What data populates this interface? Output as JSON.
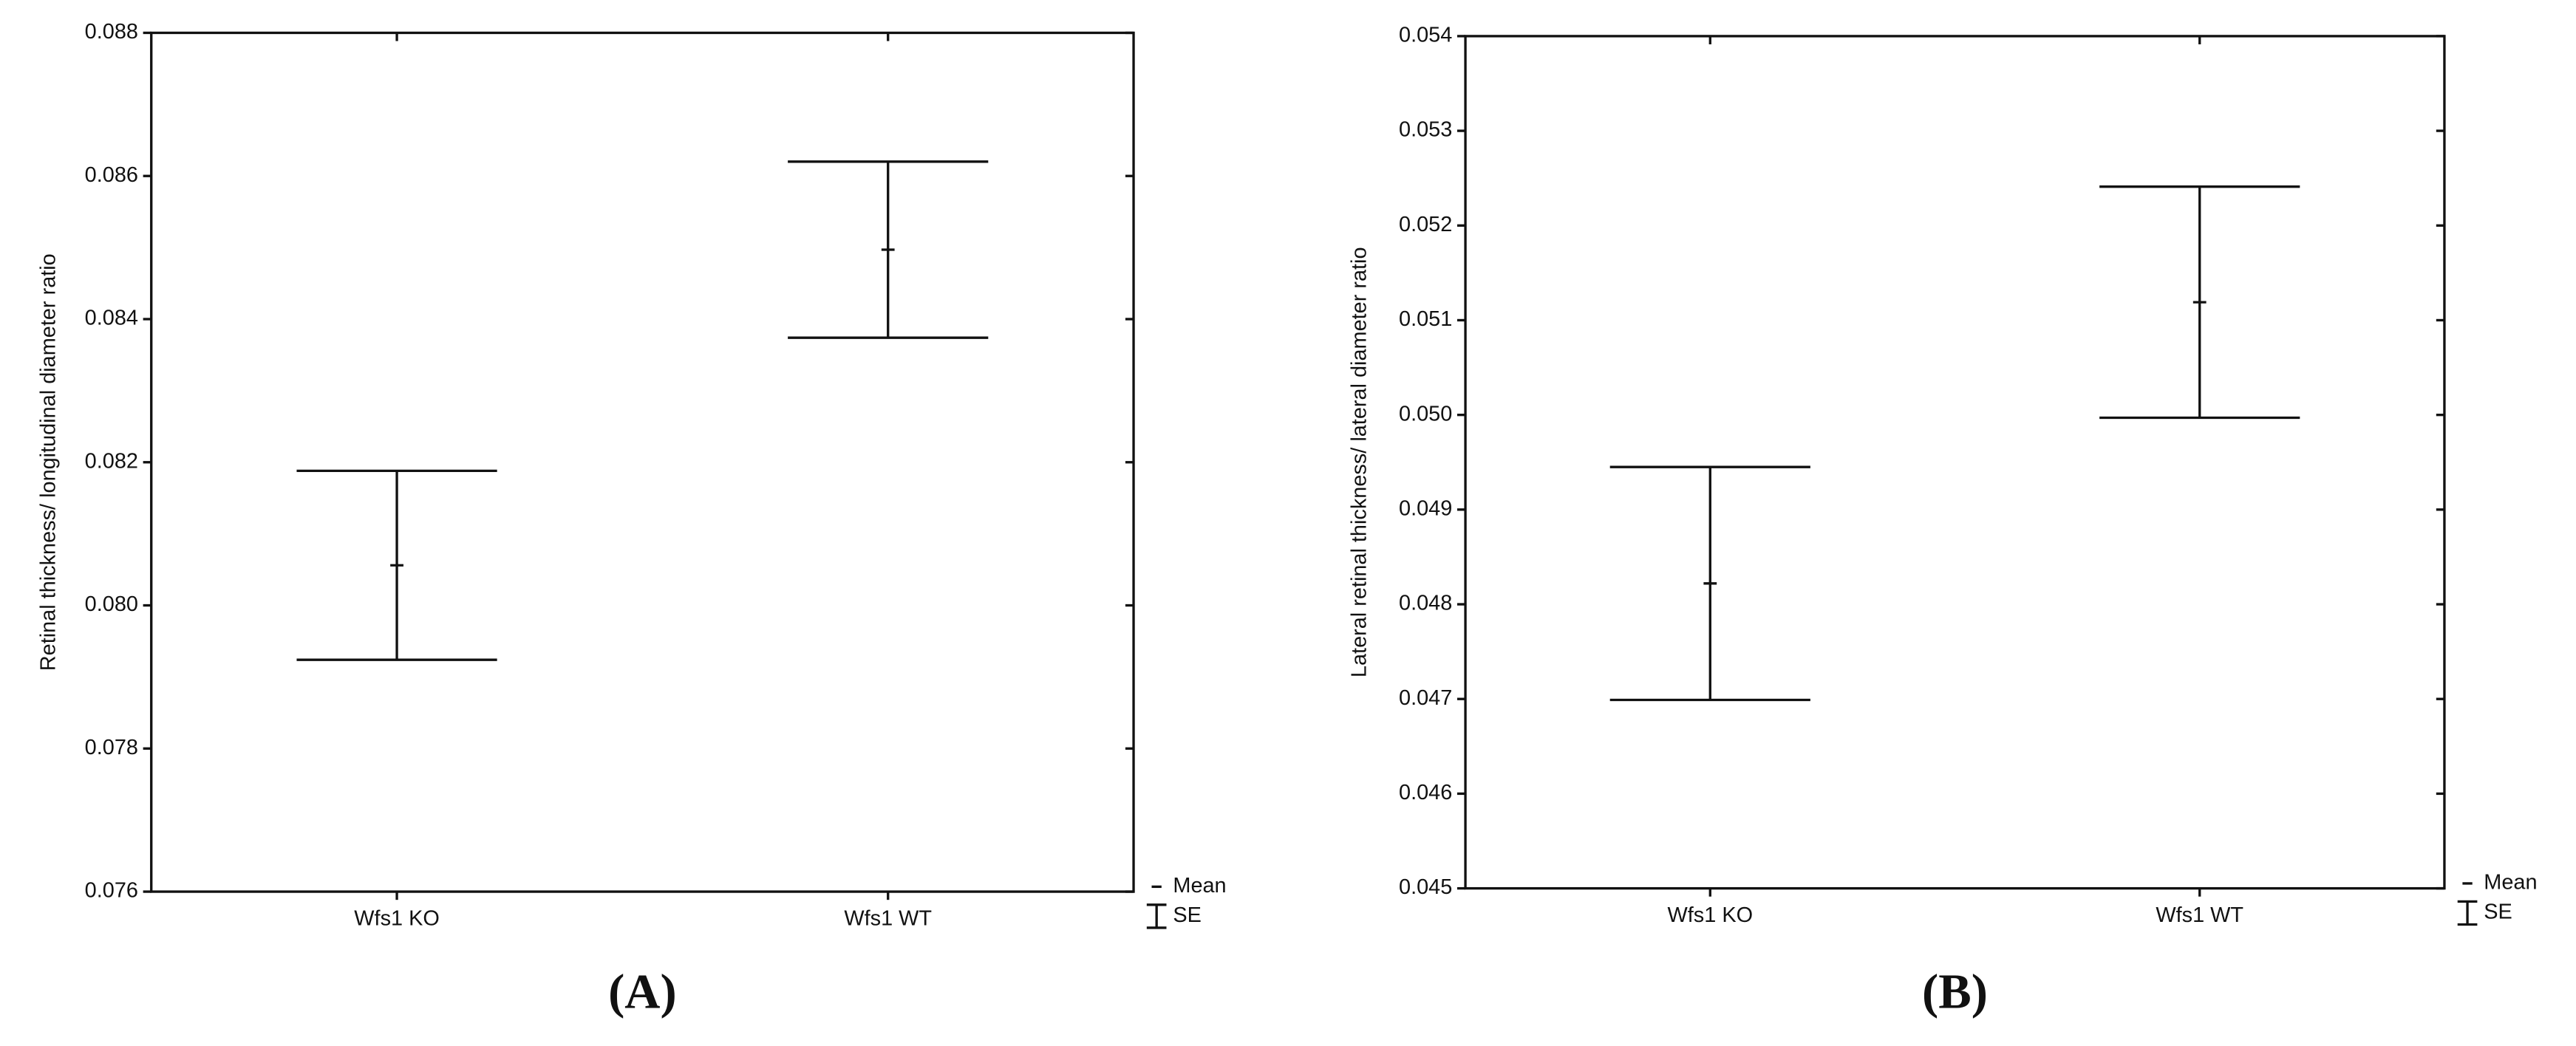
{
  "chart_data": [
    {
      "type": "errorbar",
      "panel_label": "(A)",
      "y_label": "Retinal thickness/ longitudinal diameter ratio",
      "categories": [
        "Wfs1 KO",
        "Wfs1 WT"
      ],
      "series": [
        {
          "name": "Mean",
          "color": "#111111",
          "values": [
            0.08056,
            0.08497
          ],
          "errors": [
            0.00132,
            0.00123
          ]
        }
      ],
      "error_name": "SE",
      "ylim": [
        0.076,
        0.088
      ],
      "yticks": [
        0.076,
        0.078,
        {
          "value": 0.08,
          "label": "0.080"
        },
        0.082,
        0.084,
        0.086,
        0.088
      ]
    },
    {
      "type": "errorbar",
      "panel_label": "(B)",
      "y_label": "Lateral retinal thickness/ lateral diameter ratio",
      "categories": [
        "Wfs1 KO",
        "Wfs1 WT"
      ],
      "series": [
        {
          "name": "Mean",
          "color": "#111111",
          "values": [
            0.04822,
            0.05119
          ],
          "errors": [
            0.00123,
            0.00122
          ]
        }
      ],
      "error_name": "SE",
      "ylim": [
        0.045,
        0.054
      ],
      "yticks": [
        0.045,
        0.046,
        0.047,
        0.048,
        0.049,
        {
          "value": 0.05,
          "label": "0.050"
        },
        0.051,
        0.052,
        0.053,
        0.054
      ]
    }
  ]
}
